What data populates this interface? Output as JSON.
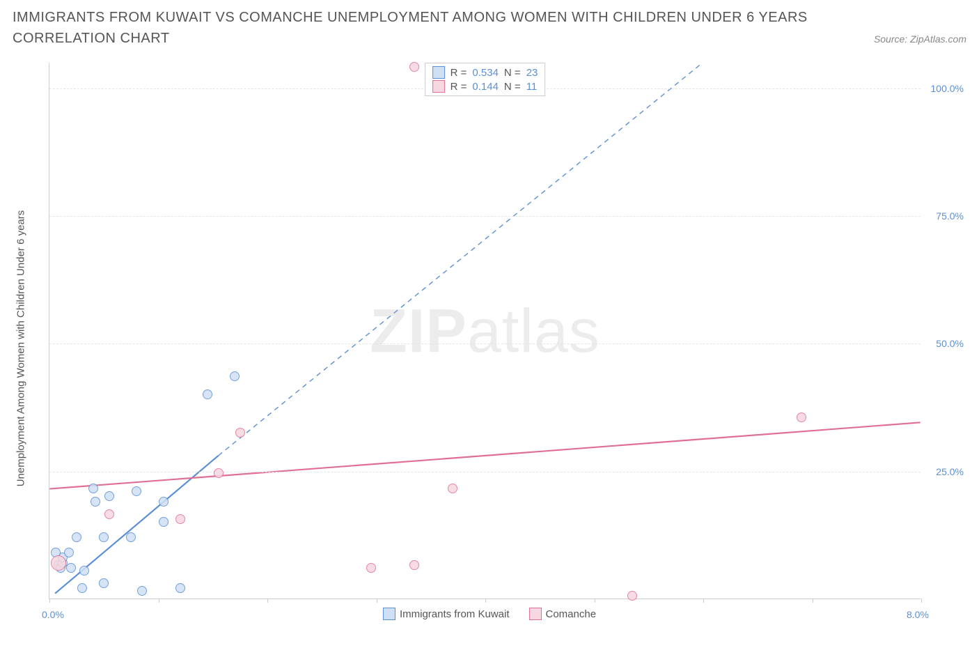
{
  "title": "IMMIGRANTS FROM KUWAIT VS COMANCHE UNEMPLOYMENT AMONG WOMEN WITH CHILDREN UNDER 6 YEARS CORRELATION CHART",
  "source": "Source: ZipAtlas.com",
  "watermark_zip": "ZIP",
  "watermark_atlas": "atlas",
  "yaxis_title": "Unemployment Among Women with Children Under 6 years",
  "chart": {
    "type": "scatter",
    "background_color": "#ffffff",
    "grid_color": "#e5e5e5",
    "axis_color": "#cccccc",
    "tick_label_color": "#5b8fd6",
    "xlim": [
      0.0,
      8.0
    ],
    "ylim": [
      0.0,
      105.0
    ],
    "x_tick_positions": [
      0.0,
      1.0,
      2.0,
      3.0,
      4.0,
      5.0,
      6.0,
      7.0,
      8.0
    ],
    "y_grid_positions": [
      25.0,
      50.0,
      75.0,
      100.0
    ],
    "y_tick_labels": [
      "25.0%",
      "50.0%",
      "75.0%",
      "100.0%"
    ],
    "x_min_label": "0.0%",
    "x_max_label": "8.0%",
    "marker_radius": 7,
    "marker_border_width": 1.2,
    "series": [
      {
        "name": "Immigrants from Kuwait",
        "fill": "#cfe0f5",
        "stroke": "#5b8fd6",
        "R": "0.534",
        "N": "23",
        "trend": {
          "x1": 0.05,
          "y1": 1.0,
          "x2": 1.55,
          "y2": 28.0,
          "dash_x2": 6.0,
          "dash_y2": 105.0,
          "width": 2.2
        },
        "points": [
          {
            "x": 0.08,
            "y": 6.5
          },
          {
            "x": 0.1,
            "y": 6.0
          },
          {
            "x": 0.12,
            "y": 7.0
          },
          {
            "x": 0.12,
            "y": 8.0
          },
          {
            "x": 0.06,
            "y": 9.0
          },
          {
            "x": 0.2,
            "y": 6.0
          },
          {
            "x": 0.18,
            "y": 9.0
          },
          {
            "x": 0.3,
            "y": 2.0
          },
          {
            "x": 0.32,
            "y": 5.5
          },
          {
            "x": 0.5,
            "y": 3.0
          },
          {
            "x": 0.5,
            "y": 12.0
          },
          {
            "x": 0.55,
            "y": 20.0
          },
          {
            "x": 0.75,
            "y": 12.0
          },
          {
            "x": 0.8,
            "y": 21.0
          },
          {
            "x": 0.85,
            "y": 1.5
          },
          {
            "x": 1.05,
            "y": 15.0
          },
          {
            "x": 1.05,
            "y": 19.0
          },
          {
            "x": 1.2,
            "y": 2.0
          },
          {
            "x": 1.45,
            "y": 40.0
          },
          {
            "x": 1.7,
            "y": 43.5
          },
          {
            "x": 0.4,
            "y": 21.5
          },
          {
            "x": 0.42,
            "y": 19.0
          },
          {
            "x": 0.25,
            "y": 12.0
          }
        ]
      },
      {
        "name": "Comanche",
        "fill": "#f7d7e0",
        "stroke": "#e06f95",
        "R": "0.144",
        "N": "11",
        "trend": {
          "x1": 0.0,
          "y1": 21.5,
          "x2": 8.0,
          "y2": 34.5,
          "width": 2.2
        },
        "points": [
          {
            "x": 0.08,
            "y": 7.0,
            "r": 11
          },
          {
            "x": 0.55,
            "y": 16.5
          },
          {
            "x": 1.2,
            "y": 15.5
          },
          {
            "x": 1.55,
            "y": 24.5
          },
          {
            "x": 1.75,
            "y": 32.5
          },
          {
            "x": 2.95,
            "y": 6.0
          },
          {
            "x": 3.35,
            "y": 6.5
          },
          {
            "x": 3.7,
            "y": 21.5
          },
          {
            "x": 5.35,
            "y": 0.5
          },
          {
            "x": 6.9,
            "y": 35.5
          },
          {
            "x": 3.35,
            "y": 104.0
          }
        ]
      }
    ]
  },
  "legend_top": {
    "r_label": "R =",
    "n_label": "N ="
  },
  "legend_bottom": [
    {
      "label": "Immigrants from Kuwait",
      "fill": "#cfe0f5",
      "stroke": "#5b8fd6"
    },
    {
      "label": "Comanche",
      "fill": "#f7d7e0",
      "stroke": "#e06f95"
    }
  ]
}
